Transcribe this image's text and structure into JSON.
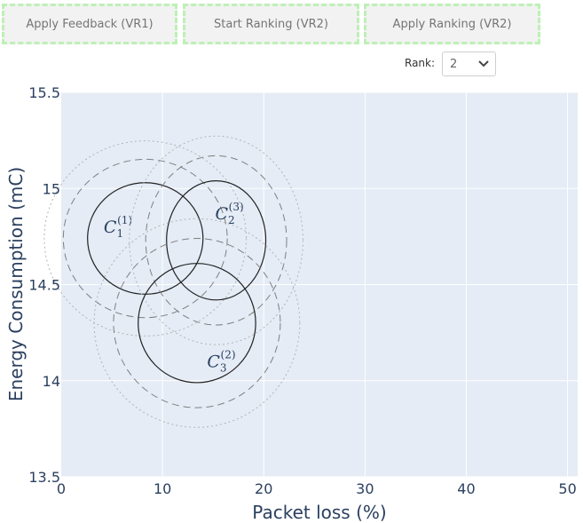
{
  "toolbar": {
    "apply_feedback_label": "Apply Feedback (VR1)",
    "start_ranking_label": "Start Ranking (VR2)",
    "apply_ranking_label": "Apply Ranking (VR2)"
  },
  "rank": {
    "label": "Rank:",
    "value": "2"
  },
  "chart_data": {
    "type": "scatter",
    "xlabel": "Packet loss (%)",
    "ylabel": "Energy Consumption (mC)",
    "xlim": [
      0,
      51
    ],
    "ylim": [
      13.5,
      15.5
    ],
    "x_ticks": [
      "0",
      "10",
      "20",
      "30",
      "40",
      "50"
    ],
    "y_ticks": [
      "13.5",
      "14",
      "14.5",
      "15",
      "15.5"
    ],
    "grid": true,
    "colors": {
      "plot_bg": "#e5ecf6",
      "grid": "#ffffff",
      "text": "#2a3f5f"
    },
    "clusters": [
      {
        "name": "C",
        "sub": "1",
        "sup": "(1)",
        "cx": 8.3,
        "cy": 14.74,
        "r_x": 5.7,
        "r_y": 0.29,
        "label_x": 4.2,
        "label_y": 14.77
      },
      {
        "name": "C",
        "sub": "2",
        "sup": "(3)",
        "cx": 15.3,
        "cy": 14.73,
        "r_x": 4.9,
        "r_y": 0.31,
        "label_x": 15.2,
        "label_y": 14.84
      },
      {
        "name": "C",
        "sub": "3",
        "sup": "(2)",
        "cx": 13.4,
        "cy": 14.3,
        "r_x": 5.8,
        "r_y": 0.31,
        "label_x": 14.4,
        "label_y": 14.07
      }
    ]
  }
}
